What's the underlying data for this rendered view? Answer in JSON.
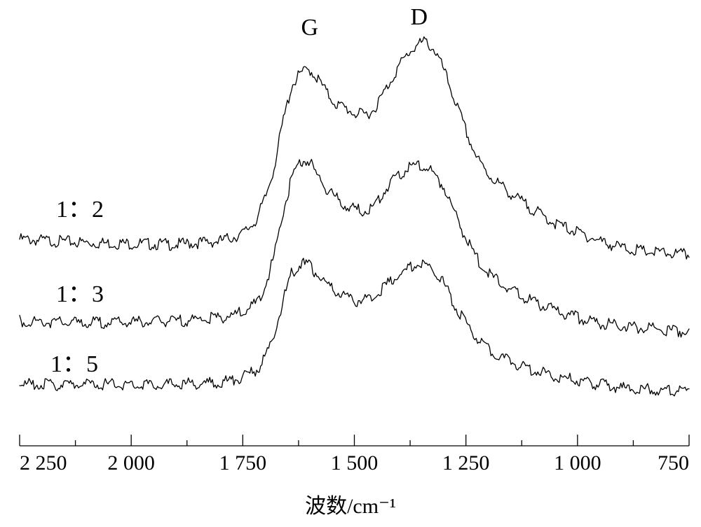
{
  "chart_data": {
    "type": "line",
    "xlabel": "波数/cm⁻¹",
    "ylabel": "",
    "xlim": [
      2250,
      750
    ],
    "x_reversed": true,
    "x_ticks": [
      2250,
      2000,
      1750,
      1500,
      1250,
      1000,
      750
    ],
    "x_tick_labels": [
      "2 250",
      "2 000",
      "1 750",
      "1 500",
      "1 250",
      "1 000",
      "750"
    ],
    "grid": false,
    "y_axis_shown": false,
    "annotations": [
      {
        "text": "G",
        "x": 1600
      },
      {
        "text": "D",
        "x": 1355
      }
    ],
    "series": [
      {
        "name": "1：2",
        "x": [
          2250,
          2100,
          1900,
          1800,
          1750,
          1720,
          1700,
          1680,
          1660,
          1640,
          1620,
          1600,
          1580,
          1560,
          1540,
          1520,
          1500,
          1480,
          1460,
          1440,
          1420,
          1400,
          1380,
          1360,
          1340,
          1320,
          1300,
          1280,
          1260,
          1240,
          1220,
          1200,
          1150,
          1100,
          1050,
          1000,
          950,
          900,
          850,
          800,
          750
        ],
        "y": [
          0.05,
          0.03,
          0.02,
          0.04,
          0.08,
          0.16,
          0.28,
          0.46,
          0.72,
          0.93,
          1.0,
          1.02,
          0.96,
          0.88,
          0.82,
          0.8,
          0.77,
          0.76,
          0.78,
          0.86,
          0.95,
          1.04,
          1.11,
          1.16,
          1.18,
          1.13,
          1.02,
          0.88,
          0.74,
          0.6,
          0.49,
          0.42,
          0.31,
          0.22,
          0.14,
          0.09,
          0.04,
          0.0,
          -0.02,
          -0.03,
          -0.04
        ]
      },
      {
        "name": "1：3",
        "x": [
          2250,
          2100,
          1900,
          1800,
          1750,
          1720,
          1700,
          1680,
          1660,
          1640,
          1620,
          1600,
          1580,
          1560,
          1540,
          1520,
          1500,
          1480,
          1460,
          1440,
          1420,
          1400,
          1380,
          1360,
          1340,
          1320,
          1300,
          1280,
          1260,
          1240,
          1220,
          1200,
          1150,
          1100,
          1050,
          1000,
          950,
          900,
          850,
          800,
          750
        ],
        "y": [
          0.03,
          0.02,
          0.03,
          0.05,
          0.08,
          0.13,
          0.23,
          0.4,
          0.65,
          0.85,
          0.95,
          0.94,
          0.85,
          0.78,
          0.73,
          0.69,
          0.67,
          0.66,
          0.68,
          0.74,
          0.82,
          0.87,
          0.9,
          0.92,
          0.91,
          0.87,
          0.8,
          0.68,
          0.56,
          0.45,
          0.37,
          0.3,
          0.21,
          0.14,
          0.09,
          0.05,
          0.02,
          0.0,
          -0.01,
          -0.02,
          -0.03
        ]
      },
      {
        "name": "1：5",
        "x": [
          2250,
          2100,
          1900,
          1800,
          1750,
          1720,
          1700,
          1680,
          1660,
          1640,
          1620,
          1600,
          1580,
          1560,
          1540,
          1520,
          1500,
          1480,
          1460,
          1440,
          1420,
          1400,
          1380,
          1360,
          1340,
          1320,
          1300,
          1280,
          1260,
          1240,
          1220,
          1200,
          1150,
          1100,
          1050,
          1000,
          950,
          900,
          850,
          800,
          750
        ],
        "y": [
          0.02,
          0.02,
          0.02,
          0.03,
          0.06,
          0.1,
          0.17,
          0.3,
          0.5,
          0.66,
          0.71,
          0.7,
          0.64,
          0.58,
          0.55,
          0.52,
          0.5,
          0.5,
          0.52,
          0.56,
          0.61,
          0.65,
          0.68,
          0.71,
          0.7,
          0.67,
          0.6,
          0.5,
          0.41,
          0.33,
          0.27,
          0.22,
          0.15,
          0.1,
          0.07,
          0.04,
          0.02,
          0.0,
          -0.01,
          -0.01,
          -0.02
        ]
      }
    ]
  }
}
